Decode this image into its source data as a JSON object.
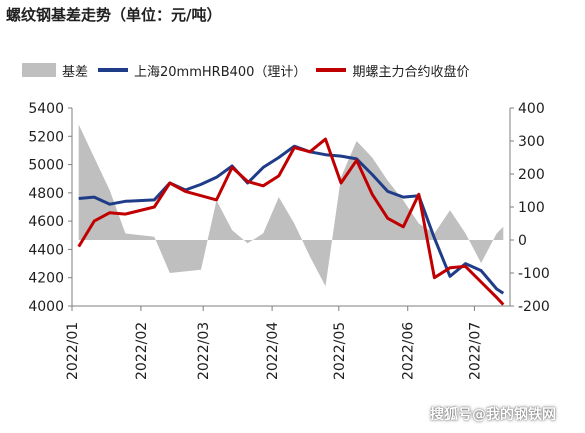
{
  "title": "螺纹钢基差走势（单位：元/吨）",
  "watermark": "搜狐号@我的钢铁网",
  "chart_data": {
    "type": "line",
    "title": "螺纹钢基差走势（单位：元/吨）",
    "legend_position": "top",
    "grid": false,
    "x_dates": [
      "2022-01-04",
      "2022-01-11",
      "2022-01-18",
      "2022-01-25",
      "2022-02-07",
      "2022-02-14",
      "2022-02-21",
      "2022-02-28",
      "2022-03-07",
      "2022-03-14",
      "2022-03-21",
      "2022-03-28",
      "2022-04-04",
      "2022-04-11",
      "2022-04-18",
      "2022-04-25",
      "2022-05-02",
      "2022-05-09",
      "2022-05-16",
      "2022-05-23",
      "2022-05-30",
      "2022-06-06",
      "2022-06-13",
      "2022-06-20",
      "2022-06-27",
      "2022-07-04",
      "2022-07-11",
      "2022-07-14"
    ],
    "x_ticks": [
      "2022/01",
      "2022/02",
      "2022/03",
      "2022/04",
      "2022/05",
      "2022/06",
      "2022/07"
    ],
    "y_left": {
      "min": 4000,
      "max": 5400,
      "ticks": [
        4000,
        4200,
        4400,
        4600,
        4800,
        5000,
        5200,
        5400
      ]
    },
    "y_right": {
      "min": -200,
      "max": 400,
      "ticks": [
        -200,
        -100,
        0,
        100,
        200,
        300,
        400
      ]
    },
    "series": [
      {
        "name": "基差",
        "kind": "area",
        "axis": "right",
        "color": "#bfbfbf",
        "values": [
          350,
          250,
          150,
          20,
          10,
          -100,
          -95,
          -90,
          120,
          30,
          -10,
          20,
          130,
          50,
          -50,
          -140,
          190,
          300,
          250,
          180,
          120,
          50,
          20,
          90,
          20,
          -70,
          20,
          40
        ]
      },
      {
        "name": "上海20mmHRB400（理计）",
        "kind": "line",
        "axis": "left",
        "color": "#1f3c88",
        "values": [
          4760,
          4770,
          4720,
          4740,
          4750,
          4870,
          4820,
          4860,
          4910,
          4990,
          4870,
          4980,
          5050,
          5130,
          5090,
          5070,
          5060,
          5040,
          4930,
          4810,
          4770,
          4780,
          4480,
          4210,
          4300,
          4250,
          4120,
          4090
        ]
      },
      {
        "name": "期螺主力合约收盘价",
        "kind": "line",
        "axis": "left",
        "color": "#c00000",
        "values": [
          4420,
          4600,
          4660,
          4650,
          4700,
          4870,
          4810,
          4780,
          4750,
          4980,
          4880,
          4850,
          4920,
          5120,
          5090,
          5180,
          4870,
          5030,
          4790,
          4620,
          4560,
          4790,
          4200,
          4270,
          4280,
          4170,
          4060,
          4010
        ]
      }
    ]
  }
}
